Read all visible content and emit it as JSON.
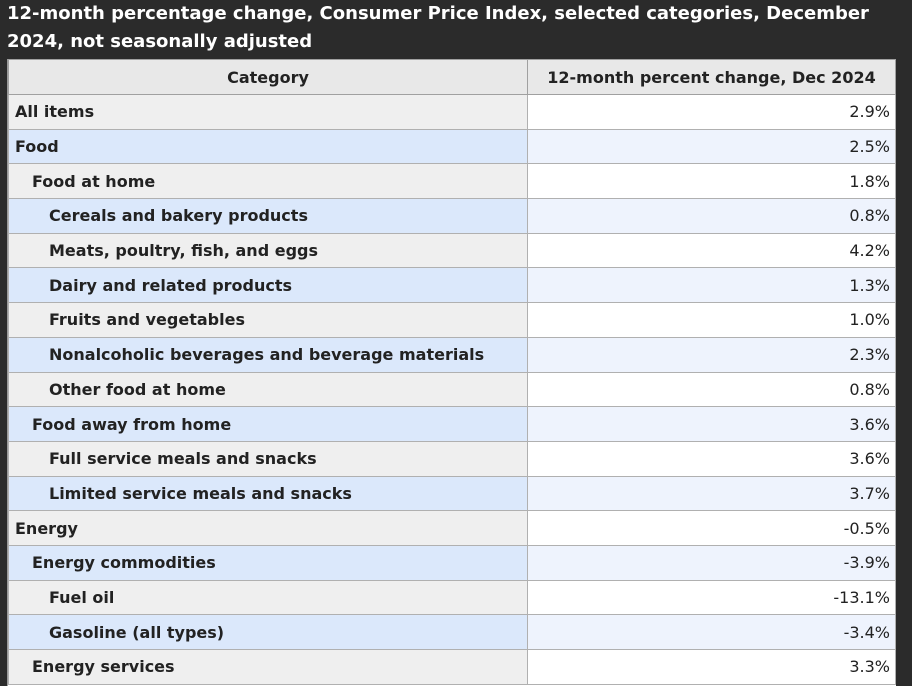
{
  "title": "12-month percentage change, Consumer Price Index, selected categories, December 2024, not seasonally adjusted",
  "table": {
    "headers": [
      "Category",
      "12-month percent change, Dec 2024"
    ],
    "rows": [
      {
        "category": "All items",
        "value": "2.9%",
        "level": 0
      },
      {
        "category": "Food",
        "value": "2.5%",
        "level": 0
      },
      {
        "category": "Food at home",
        "value": "1.8%",
        "level": 1
      },
      {
        "category": "Cereals and bakery products",
        "value": "0.8%",
        "level": 2
      },
      {
        "category": "Meats, poultry, fish, and eggs",
        "value": "4.2%",
        "level": 2
      },
      {
        "category": "Dairy and related products",
        "value": "1.3%",
        "level": 2
      },
      {
        "category": "Fruits and vegetables",
        "value": "1.0%",
        "level": 2
      },
      {
        "category": "Nonalcoholic beverages and beverage materials",
        "value": "2.3%",
        "level": 2
      },
      {
        "category": "Other food at home",
        "value": "0.8%",
        "level": 2
      },
      {
        "category": "Food away from home",
        "value": "3.6%",
        "level": 1
      },
      {
        "category": "Full service meals and snacks",
        "value": "3.6%",
        "level": 2
      },
      {
        "category": "Limited service meals and snacks",
        "value": "3.7%",
        "level": 2
      },
      {
        "category": "Energy",
        "value": "-0.5%",
        "level": 0
      },
      {
        "category": "Energy commodities",
        "value": "-3.9%",
        "level": 1
      },
      {
        "category": "Fuel oil",
        "value": "-13.1%",
        "level": 2
      },
      {
        "category": "Gasoline (all types)",
        "value": "-3.4%",
        "level": 2
      },
      {
        "category": "Energy services",
        "value": "3.3%",
        "level": 1
      }
    ]
  }
}
